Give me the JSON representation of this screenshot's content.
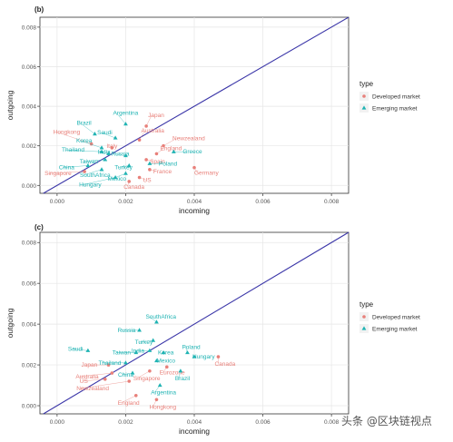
{
  "watermark": "头条 @区块链视点",
  "colors": {
    "developed": "#e8807a",
    "emerging": "#1fb3b3",
    "diagonal": "#3b36a8",
    "axis_text": "#555555",
    "grid": "#e6e6e6"
  },
  "chart_data": [
    {
      "type": "scatter",
      "panel_label": "(b)",
      "xlabel": "incoming",
      "ylabel": "outgoing",
      "xlim": [
        -0.0005,
        0.0085
      ],
      "ylim": [
        -0.0004,
        0.0085
      ],
      "xticks": [
        "0.000",
        "0.002",
        "0.004",
        "0.006",
        "0.008"
      ],
      "yticks": [
        "0.000",
        "0.002",
        "0.004",
        "0.006",
        "0.008"
      ],
      "grid": true,
      "diagonal": "y=x",
      "legend": {
        "title": "type",
        "placement": "right",
        "entries": [
          "Developed market",
          "Emerging market"
        ]
      },
      "series": [
        {
          "name": "Developed market",
          "points": [
            {
              "label": "Hongkong",
              "x": 0.001,
              "y": 0.0021
            },
            {
              "label": "Singapore",
              "x": 0.0008,
              "y": 0.0007
            },
            {
              "label": "Japan",
              "x": 0.0026,
              "y": 0.003
            },
            {
              "label": "Australia",
              "x": 0.0024,
              "y": 0.0023
            },
            {
              "label": "Newzealand",
              "x": 0.0031,
              "y": 0.002
            },
            {
              "label": "England",
              "x": 0.0029,
              "y": 0.0016
            },
            {
              "label": "Spain",
              "x": 0.0026,
              "y": 0.0013
            },
            {
              "label": "France",
              "x": 0.0027,
              "y": 0.0008
            },
            {
              "label": "US",
              "x": 0.0024,
              "y": 0.0004
            },
            {
              "label": "Canada",
              "x": 0.0021,
              "y": 0.0002
            },
            {
              "label": "Germany",
              "x": 0.004,
              "y": 0.0009
            },
            {
              "label": "Italy",
              "x": 0.0016,
              "y": 0.0019
            }
          ]
        },
        {
          "name": "Emerging market",
          "points": [
            {
              "label": "Argentina",
              "x": 0.002,
              "y": 0.0031
            },
            {
              "label": "Brazil",
              "x": 0.0011,
              "y": 0.0026
            },
            {
              "label": "Saudi",
              "x": 0.0017,
              "y": 0.0024
            },
            {
              "label": "Korea",
              "x": 0.0013,
              "y": 0.0019
            },
            {
              "label": "Thailand",
              "x": 0.0013,
              "y": 0.0017
            },
            {
              "label": "India",
              "x": 0.0015,
              "y": 0.0016
            },
            {
              "label": "Taiwan",
              "x": 0.0014,
              "y": 0.0013
            },
            {
              "label": "China",
              "x": 0.0009,
              "y": 0.001
            },
            {
              "label": "SouthAfrica",
              "x": 0.0013,
              "y": 0.0008
            },
            {
              "label": "Hungary",
              "x": 0.0017,
              "y": 0.0004
            },
            {
              "label": "Russia",
              "x": 0.002,
              "y": 0.0015
            },
            {
              "label": "Turkey",
              "x": 0.0021,
              "y": 0.001
            },
            {
              "label": "Mexico",
              "x": 0.002,
              "y": 0.0006
            },
            {
              "label": "Poland",
              "x": 0.0027,
              "y": 0.0011
            },
            {
              "label": "Greece",
              "x": 0.0034,
              "y": 0.0017
            }
          ]
        }
      ]
    },
    {
      "type": "scatter",
      "panel_label": "(c)",
      "xlabel": "incoming",
      "ylabel": "outgoing",
      "xlim": [
        -0.0005,
        0.0085
      ],
      "ylim": [
        -0.0004,
        0.0085
      ],
      "xticks": [
        "0.000",
        "0.002",
        "0.004",
        "0.006",
        "0.008"
      ],
      "yticks": [
        "0.000",
        "0.002",
        "0.004",
        "0.006",
        "0.008"
      ],
      "grid": true,
      "diagonal": "y=x",
      "legend": {
        "title": "type",
        "placement": "right",
        "entries": [
          "Developed market",
          "Emerging market"
        ]
      },
      "series": [
        {
          "name": "Developed market",
          "points": [
            {
              "label": "Japan",
              "x": 0.0015,
              "y": 0.002
            },
            {
              "label": "Australia",
              "x": 0.0016,
              "y": 0.0016
            },
            {
              "label": "US",
              "x": 0.0014,
              "y": 0.0013
            },
            {
              "label": "Newzealand",
              "x": 0.0021,
              "y": 0.0012
            },
            {
              "label": "England",
              "x": 0.0023,
              "y": 0.0005
            },
            {
              "label": "Hongkong",
              "x": 0.0029,
              "y": 0.0003
            },
            {
              "label": "Singapore",
              "x": 0.0027,
              "y": 0.0017
            },
            {
              "label": "Eurozone",
              "x": 0.0032,
              "y": 0.0019
            },
            {
              "label": "Canada",
              "x": 0.0047,
              "y": 0.0024
            }
          ]
        },
        {
          "name": "Emerging market",
          "points": [
            {
              "label": "SouthAfrica",
              "x": 0.0029,
              "y": 0.0041
            },
            {
              "label": "Russia",
              "x": 0.0024,
              "y": 0.0037
            },
            {
              "label": "Turkey",
              "x": 0.0028,
              "y": 0.0032
            },
            {
              "label": "Saudi",
              "x": 0.0009,
              "y": 0.0027
            },
            {
              "label": "Taiwan",
              "x": 0.0023,
              "y": 0.0026
            },
            {
              "label": "India",
              "x": 0.0027,
              "y": 0.0027
            },
            {
              "label": "Korea",
              "x": 0.0031,
              "y": 0.0026
            },
            {
              "label": "Poland",
              "x": 0.0038,
              "y": 0.0026
            },
            {
              "label": "Hungary",
              "x": 0.004,
              "y": 0.0024
            },
            {
              "label": "Thailand",
              "x": 0.002,
              "y": 0.0021
            },
            {
              "label": "Mexico",
              "x": 0.0029,
              "y": 0.0022
            },
            {
              "label": "China",
              "x": 0.0022,
              "y": 0.0016
            },
            {
              "label": "Brazil",
              "x": 0.0036,
              "y": 0.0017
            },
            {
              "label": "Argentina",
              "x": 0.003,
              "y": 0.001
            }
          ]
        }
      ]
    }
  ]
}
